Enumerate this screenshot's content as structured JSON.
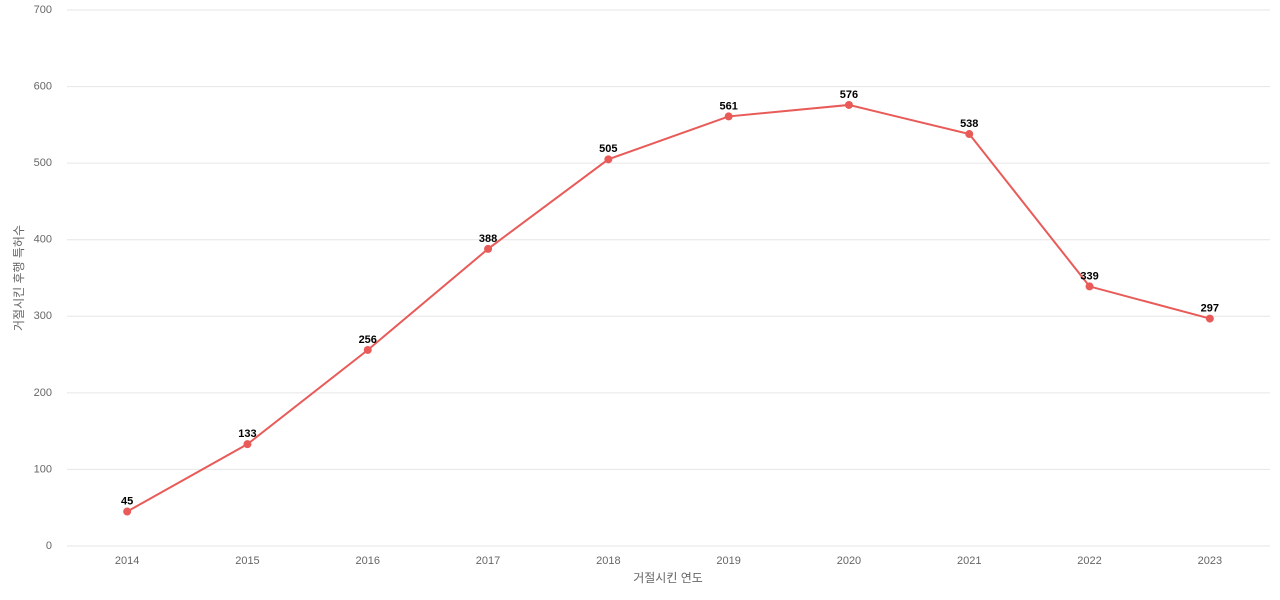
{
  "chart_data": {
    "type": "line",
    "x_label": "거절시킨 연도",
    "y_label": "거절시킨 후행 특허수",
    "categories": [
      "2014",
      "2015",
      "2016",
      "2017",
      "2018",
      "2019",
      "2020",
      "2021",
      "2022",
      "2023"
    ],
    "series": [
      {
        "color": "#e85b58",
        "values": [
          45,
          133,
          256,
          388,
          505,
          561,
          576,
          538,
          339,
          297
        ]
      }
    ],
    "ylim": [
      0,
      700
    ],
    "yticks": [
      0,
      100,
      200,
      300,
      400,
      500,
      600,
      700
    ],
    "grid": true
  }
}
